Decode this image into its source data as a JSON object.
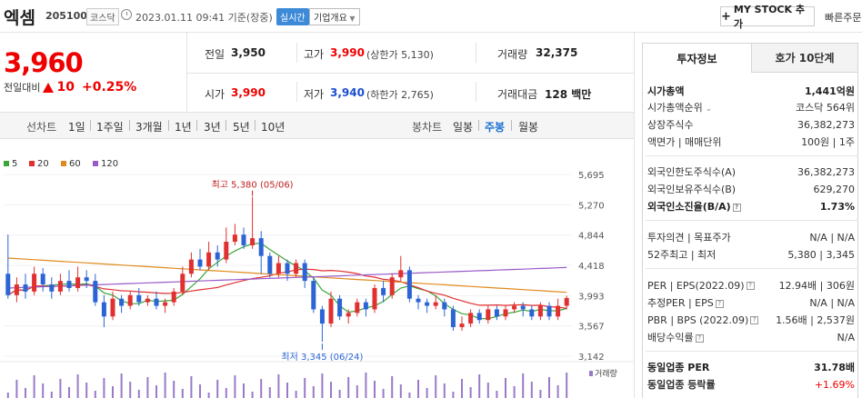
{
  "header": {
    "stock_name": "엑셈",
    "stock_code": "205100",
    "market": "코스닥",
    "date": "2023.01.11 09:41  기준(장중)",
    "realtime": "실시간",
    "company_info": "기업개요",
    "mystock": "MY STOCK 추가",
    "quick_order": "빠른주문"
  },
  "price": {
    "current": "3,960",
    "change_label": "전일대비",
    "change_value": "10",
    "change_pct": "+0.25%"
  },
  "quote": {
    "prev_close_label": "전일",
    "prev_close": "3,950",
    "high_label": "고가",
    "high": "3,990",
    "upper_limit": "(상한가 5,130)",
    "volume_label": "거래량",
    "volume": "32,375",
    "open_label": "시가",
    "open": "3,990",
    "low_label": "저가",
    "low": "3,940",
    "lower_limit": "(하한가 2,765)",
    "amount_label": "거래대금",
    "amount": "128 백만"
  },
  "period_tabs": {
    "line_label": "선차트",
    "line": [
      "1일",
      "1주일",
      "3개월",
      "1년",
      "3년",
      "5년",
      "10년"
    ],
    "candle_label": "봉차트",
    "candle": [
      "일봉",
      "주봉",
      "월봉"
    ],
    "active": "주봉"
  },
  "chart_data": {
    "type": "candlestick",
    "ma_legend": [
      {
        "name": "5",
        "color": "#3aa63a"
      },
      {
        "name": "20",
        "color": "#e03030"
      },
      {
        "name": "60",
        "color": "#e08a1e"
      },
      {
        "name": "120",
        "color": "#9a5ac8"
      }
    ],
    "ylim": [
      3142,
      5695
    ],
    "yticks": [
      "5,695",
      "5,270",
      "4,844",
      "4,418",
      "3,993",
      "3,567",
      "3,142"
    ],
    "high_annotation": "최고 5,380 (05/06)",
    "low_annotation": "최저 3,345 (06/24)",
    "volume_label": "거래량",
    "candles": [
      [
        4300,
        4000,
        4850,
        3950
      ],
      [
        4000,
        4150,
        4250,
        3900
      ],
      [
        4150,
        4050,
        4300,
        3950
      ],
      [
        4050,
        4300,
        4400,
        4000
      ],
      [
        4300,
        4150,
        4380,
        4050
      ],
      [
        4150,
        4050,
        4250,
        3950
      ],
      [
        4050,
        4200,
        4300,
        4000
      ],
      [
        4200,
        4100,
        4350,
        4050
      ],
      [
        4100,
        4250,
        4400,
        4050
      ],
      [
        4250,
        4200,
        4350,
        4100
      ],
      [
        4200,
        3900,
        4300,
        3850
      ],
      [
        3900,
        3700,
        4000,
        3550
      ],
      [
        3700,
        3950,
        4050,
        3650
      ],
      [
        3950,
        3850,
        4000,
        3750
      ],
      [
        3850,
        4000,
        4050,
        3800
      ],
      [
        4000,
        3900,
        4100,
        3850
      ],
      [
        3900,
        3950,
        4000,
        3850
      ],
      [
        3950,
        3850,
        4050,
        3800
      ],
      [
        3850,
        3900,
        3950,
        3750
      ],
      [
        3900,
        4050,
        4100,
        3850
      ],
      [
        4050,
        4300,
        4400,
        4000
      ],
      [
        4300,
        4500,
        4600,
        4250
      ],
      [
        4500,
        4400,
        4650,
        4350
      ],
      [
        4400,
        4600,
        4750,
        4350
      ],
      [
        4600,
        4500,
        4700,
        4400
      ],
      [
        4500,
        4750,
        4950,
        4450
      ],
      [
        4750,
        4850,
        5000,
        4700
      ],
      [
        4850,
        4700,
        4950,
        4650
      ],
      [
        4700,
        4800,
        5380,
        4650
      ],
      [
        4800,
        4550,
        4900,
        4300
      ],
      [
        4550,
        4300,
        4600,
        4250
      ],
      [
        4300,
        4450,
        4550,
        4250
      ],
      [
        4450,
        4300,
        4500,
        4200
      ],
      [
        4300,
        4450,
        4500,
        4250
      ],
      [
        4450,
        4200,
        4500,
        4100
      ],
      [
        4200,
        3800,
        4250,
        3750
      ],
      [
        3800,
        3600,
        3850,
        3345
      ],
      [
        3600,
        3950,
        4050,
        3550
      ],
      [
        3950,
        3700,
        4000,
        3650
      ],
      [
        3700,
        3750,
        3800,
        3600
      ],
      [
        3750,
        3900,
        3950,
        3700
      ],
      [
        3900,
        3800,
        3950,
        3700
      ],
      [
        3800,
        4100,
        4150,
        3750
      ],
      [
        4100,
        4000,
        4200,
        3900
      ],
      [
        4000,
        4250,
        4300,
        3950
      ],
      [
        4250,
        4350,
        4550,
        4200
      ],
      [
        4350,
        3950,
        4400,
        3900
      ],
      [
        3950,
        3900,
        4000,
        3800
      ],
      [
        3900,
        3850,
        3950,
        3750
      ],
      [
        3850,
        3900,
        4000,
        3800
      ],
      [
        3900,
        3800,
        3950,
        3700
      ],
      [
        3800,
        3550,
        3850,
        3500
      ],
      [
        3550,
        3600,
        3700,
        3500
      ],
      [
        3600,
        3750,
        3800,
        3550
      ],
      [
        3750,
        3650,
        3800,
        3600
      ],
      [
        3650,
        3800,
        3850,
        3600
      ],
      [
        3800,
        3700,
        3850,
        3650
      ],
      [
        3700,
        3800,
        3850,
        3650
      ],
      [
        3800,
        3850,
        3900,
        3750
      ],
      [
        3850,
        3800,
        3900,
        3700
      ],
      [
        3800,
        3700,
        3850,
        3650
      ],
      [
        3700,
        3850,
        3900,
        3650
      ],
      [
        3850,
        3700,
        3900,
        3650
      ],
      [
        3700,
        3850,
        3950,
        3650
      ],
      [
        3850,
        3960,
        3990,
        3800
      ]
    ]
  },
  "tabs": {
    "invest_info": "투자정보",
    "hoga": "호가 10단계"
  },
  "invest_info": {
    "market_cap_label": "시가총액",
    "market_cap": "1,441억원",
    "cap_rank_label": "시가총액순위",
    "cap_rank": "코스닥 564위",
    "shares_label": "상장주식수",
    "shares": "36,382,273",
    "face_label": "액면가 | 매매단위",
    "face": "100원  |  1주",
    "foreign_limit_label": "외국인한도주식수(A)",
    "foreign_limit": "36,382,273",
    "foreign_hold_label": "외국인보유주식수(B)",
    "foreign_hold": "629,270",
    "foreign_ratio_label": "외국인소진율(B/A)",
    "foreign_ratio": "1.73%",
    "opinion_label": "투자의견  |  목표주가",
    "opinion": "N/A  |  N/A",
    "w52_label": "52주최고  |  최저",
    "w52": "5,380  |  3,345",
    "per_label": "PER  |  EPS(2022.09)",
    "per": "12.94배  |  306원",
    "est_per_label": "추정PER  |  EPS",
    "est_per": "N/A  |  N/A",
    "pbr_label": "PBR  |  BPS (2022.09)",
    "pbr": "1.56배  |  2,537원",
    "div_label": "배당수익률",
    "div": "N/A",
    "sector_per_label": "동일업종 PER",
    "sector_per": "31.78배",
    "sector_rate_label": "동일업종 등락률",
    "sector_rate": "+1.69%"
  }
}
